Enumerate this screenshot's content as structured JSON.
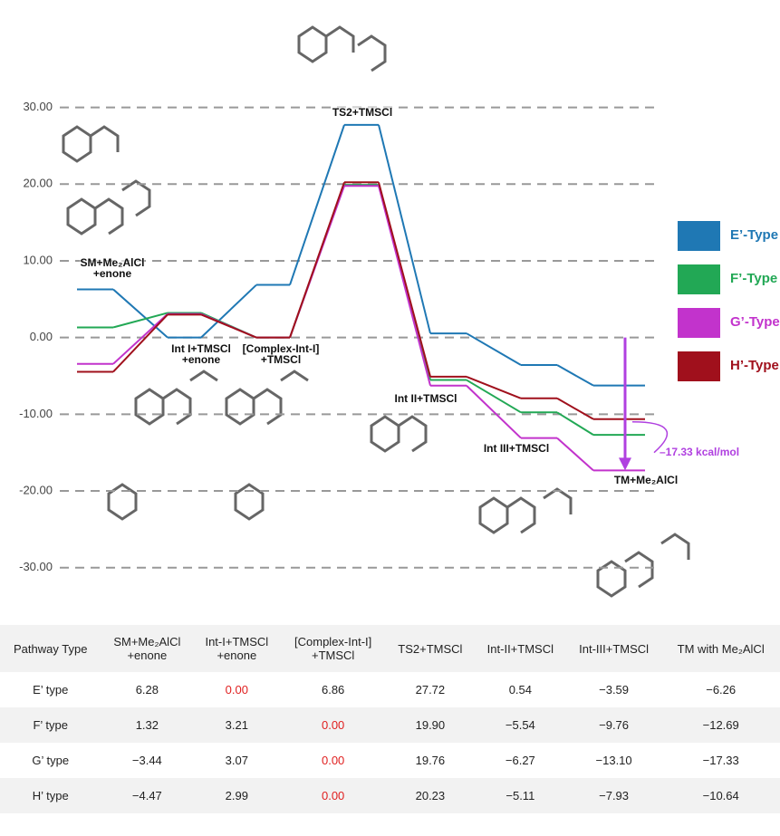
{
  "chart_data": {
    "type": "line",
    "categories": [
      "SM+Me₂AlCl\n+enone",
      "Int I+TMSCl\n+enone",
      "[Complex-Int-I]\n+TMSCl",
      "TS2+TMSCl",
      "Int II+TMSCl",
      "Int III+TMSCl",
      "TM+Me₂AlCl"
    ],
    "series": [
      {
        "name": "E’-Type",
        "color": "#1f78b4",
        "values": [
          6.28,
          0.0,
          6.86,
          27.72,
          0.54,
          -3.59,
          -6.26
        ]
      },
      {
        "name": "F’-Type",
        "color": "#22a855",
        "values": [
          1.32,
          3.21,
          0.0,
          19.9,
          -5.54,
          -9.76,
          -12.69
        ]
      },
      {
        "name": "G’-Type",
        "color": "#c233cc",
        "values": [
          -3.44,
          3.07,
          0.0,
          19.76,
          -6.27,
          -13.1,
          -17.33
        ]
      },
      {
        "name": "H’-Type",
        "color": "#a0101c",
        "values": [
          -4.47,
          2.99,
          0.0,
          20.23,
          -5.11,
          -7.93,
          -10.64
        ]
      }
    ],
    "ylim": [
      -37,
      44
    ],
    "yticks": [
      {
        "value": 30,
        "label": "30.00"
      },
      {
        "value": 20,
        "label": "20.00"
      },
      {
        "value": 10,
        "label": "10.00"
      },
      {
        "value": 0,
        "label": "0.00"
      },
      {
        "value": -10,
        "label": "-10.00"
      },
      {
        "value": -20,
        "label": "-20.00"
      },
      {
        "value": -30,
        "label": "-30.00"
      }
    ],
    "grid": true,
    "legend": "right",
    "annotation": "–17.33 kcal/mol",
    "annotation_color": "#b040e0"
  },
  "table": {
    "header": [
      "Pathway Type",
      "SM+Me₂AlCl\n+enone",
      "Int-I+TMSCl\n+enone",
      "[Complex-Int-I]\n+TMSCl",
      "TS2+TMSCl",
      "Int-II+TMSCl",
      "Int-III+TMSCl",
      "TM with Me₂AlCl"
    ],
    "rows": [
      [
        "E’ type",
        "6.28",
        "0.00",
        "6.86",
        "27.72",
        "0.54",
        "−3.59",
        "−6.26"
      ],
      [
        "F’ type",
        "1.32",
        "3.21",
        "0.00",
        "19.90",
        "−5.54",
        "−9.76",
        "−12.69"
      ],
      [
        "G’ type",
        "−3.44",
        "3.07",
        "0.00",
        "19.76",
        "−6.27",
        "−13.10",
        "−17.33"
      ],
      [
        "H’ type",
        "−4.47",
        "2.99",
        "0.00",
        "20.23",
        "−5.11",
        "−7.93",
        "−10.64"
      ]
    ],
    "highlight_color": "#e02020",
    "highlight": [
      [
        0,
        2
      ],
      [
        1,
        3
      ],
      [
        2,
        3
      ],
      [
        3,
        3
      ]
    ]
  }
}
